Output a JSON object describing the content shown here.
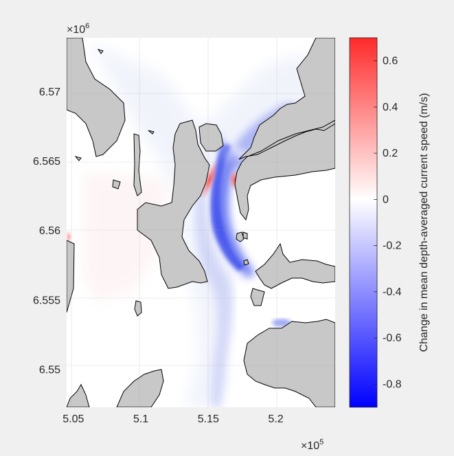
{
  "chart_data": {
    "type": "heatmap",
    "title": "",
    "xlabel": "",
    "ylabel": "",
    "x_exponent": {
      "base": "×10",
      "power": "5"
    },
    "y_exponent": {
      "base": "×10",
      "power": "6"
    },
    "xlim": [
      5.045,
      5.244
    ],
    "ylim": [
      6.5473,
      6.5739
    ],
    "x_ticks": [
      {
        "value": 5.05,
        "label": "5.05"
      },
      {
        "value": 5.1,
        "label": "5.1"
      },
      {
        "value": 5.15,
        "label": "5.15"
      },
      {
        "value": 5.2,
        "label": "5.2"
      }
    ],
    "y_ticks": [
      {
        "value": 6.55,
        "label": "6.55"
      },
      {
        "value": 6.555,
        "label": "6.555"
      },
      {
        "value": 6.56,
        "label": "6.56"
      },
      {
        "value": 6.565,
        "label": "6.565"
      },
      {
        "value": 6.57,
        "label": "6.57"
      }
    ],
    "grid": true,
    "colorbar": {
      "label": "Change in mean depth-averaged current speed (m/s)",
      "range": [
        -0.9,
        0.7
      ],
      "colormap": [
        "#0000ff",
        "#ffffff",
        "#ff0000"
      ],
      "ticks": [
        {
          "value": 0.6,
          "label": "0.6"
        },
        {
          "value": 0.4,
          "label": "0.4"
        },
        {
          "value": 0.2,
          "label": "0.2"
        },
        {
          "value": 0,
          "label": "0"
        },
        {
          "value": -0.2,
          "label": "-0.2"
        },
        {
          "value": -0.4,
          "label": "-0.4"
        },
        {
          "value": -0.6,
          "label": "-0.6"
        },
        {
          "value": -0.8,
          "label": "-0.8"
        }
      ]
    },
    "colors": {
      "land": "#c8c8c8",
      "coast": "#000000",
      "figure_bg": "#f0f0f0",
      "axes_bg": "#ffffff"
    }
  }
}
